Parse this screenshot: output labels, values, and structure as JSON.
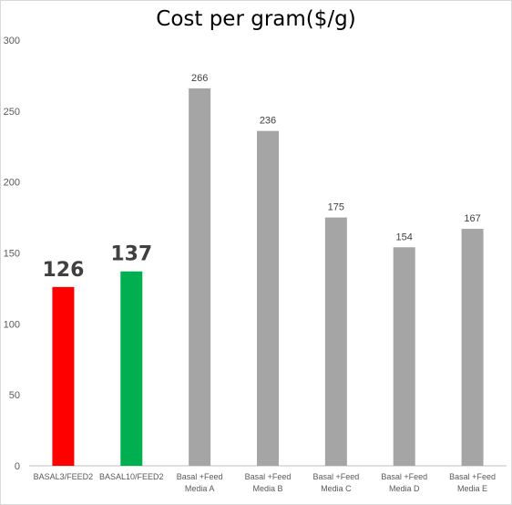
{
  "chart_data": {
    "type": "bar",
    "title": "Cost per gram($/g)",
    "xlabel": "",
    "ylabel": "",
    "ylim": [
      0,
      300
    ],
    "yticks": [
      0,
      50,
      100,
      150,
      200,
      250,
      300
    ],
    "grid": false,
    "legend": "none",
    "categories": [
      [
        "BASAL3/FEED2"
      ],
      [
        "BASAL10/FEED2"
      ],
      [
        "Basal +Feed",
        "Media A"
      ],
      [
        "Basal +Feed",
        "Media B"
      ],
      [
        "Basal +Feed",
        "Media C"
      ],
      [
        "Basal +Feed",
        "Media D"
      ],
      [
        "Basal +Feed",
        "Media E"
      ]
    ],
    "values": [
      126,
      137,
      266,
      236,
      175,
      154,
      167
    ],
    "bar_colors": [
      "#ff0000",
      "#00b050",
      "#a5a5a5",
      "#a5a5a5",
      "#a5a5a5",
      "#a5a5a5",
      "#a5a5a5"
    ],
    "label_emphasis": [
      "big",
      "big",
      "small",
      "small",
      "small",
      "small",
      "small"
    ],
    "axis_color": "#bfbfbf"
  }
}
